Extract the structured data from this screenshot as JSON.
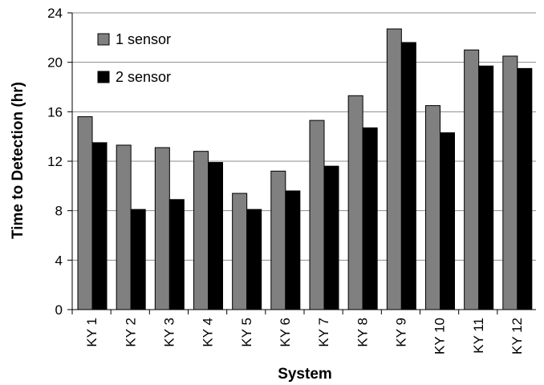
{
  "chart_data": {
    "type": "bar",
    "xlabel": "System",
    "ylabel": "Time to Detection (hr)",
    "categories": [
      "KY 1",
      "KY 2",
      "KY 3",
      "KY 4",
      "KY 5",
      "KY 6",
      "KY 7",
      "KY 8",
      "KY 9",
      "KY 10",
      "KY 11",
      "KY 12"
    ],
    "ylim": [
      0,
      24
    ],
    "yticks": [
      0,
      4,
      8,
      12,
      16,
      20,
      24
    ],
    "grid": "horizontal",
    "legend_position": "top-left",
    "series": [
      {
        "name": "1 sensor",
        "color": "#808080",
        "values": [
          15.6,
          13.3,
          13.1,
          12.8,
          9.4,
          11.2,
          15.3,
          17.3,
          22.7,
          16.5,
          21.0,
          20.5
        ]
      },
      {
        "name": "2 sensor",
        "color": "#000000",
        "values": [
          13.5,
          8.1,
          8.9,
          11.9,
          8.1,
          9.6,
          11.6,
          14.7,
          21.6,
          14.3,
          19.7,
          19.5
        ]
      }
    ]
  }
}
